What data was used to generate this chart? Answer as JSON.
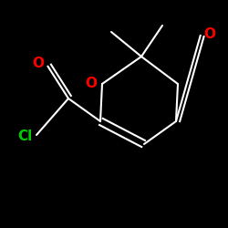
{
  "background_color": "#000000",
  "bond_color": "#ffffff",
  "atom_colors": {
    "O": "#ff0000",
    "Cl": "#00cc00",
    "C": "#ffffff"
  },
  "figsize": [
    2.5,
    2.5
  ],
  "dpi": 100
}
